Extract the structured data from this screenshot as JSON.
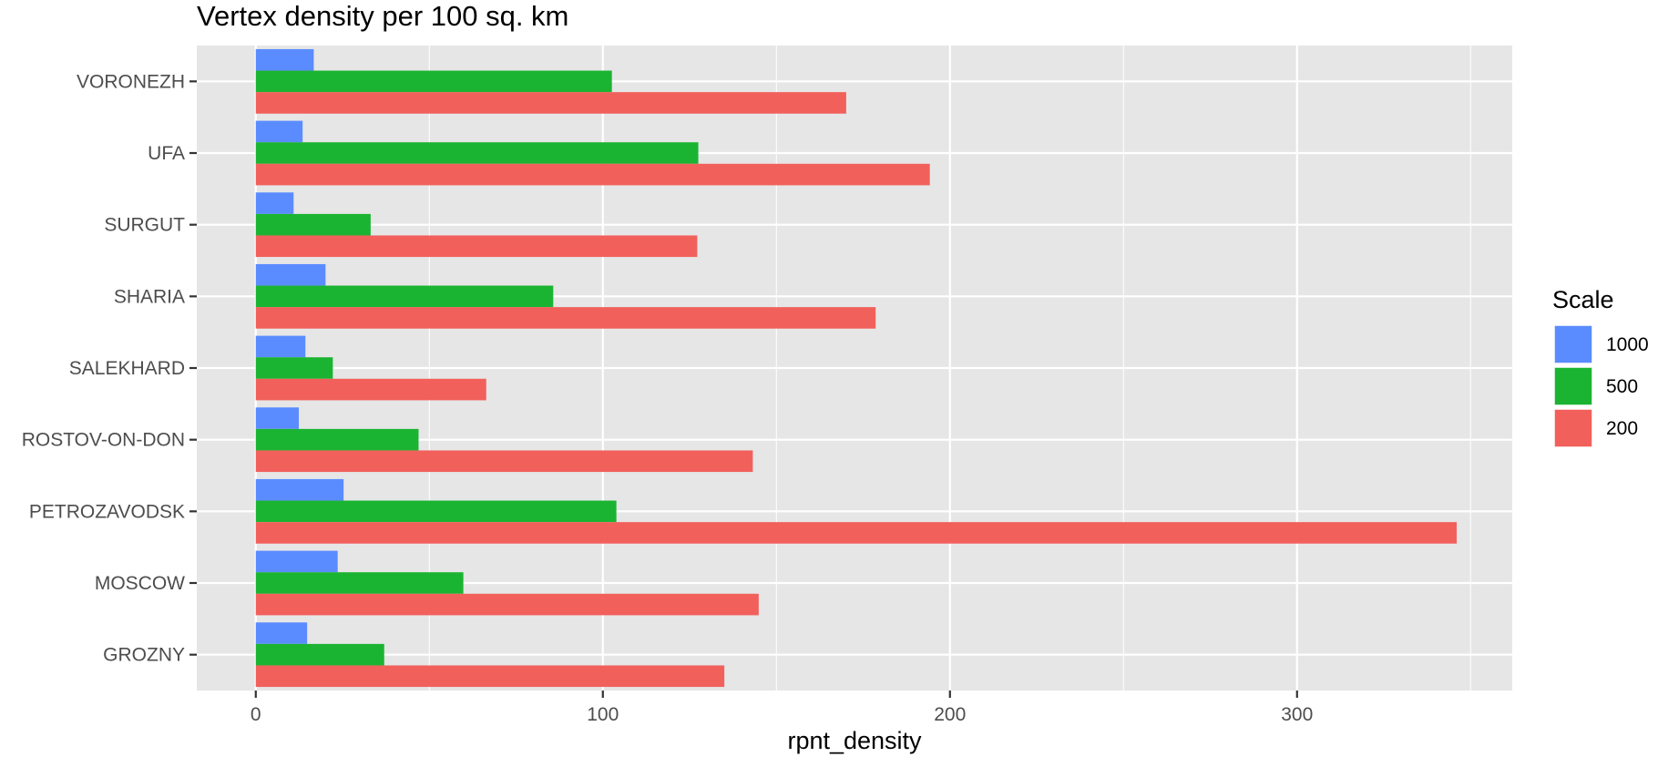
{
  "chart_data": {
    "type": "bar",
    "orientation": "horizontal",
    "title": "Vertex density per 100 sq. km",
    "xlabel": "rpnt_density",
    "ylabel": "",
    "xlim": [
      -17,
      362
    ],
    "xticks": [
      0,
      100,
      200,
      300
    ],
    "categories": [
      "VORONEZH",
      "UFA",
      "SURGUT",
      "SHARIA",
      "SALEKHARD",
      "ROSTOV-ON-DON",
      "PETROZAVODSK",
      "MOSCOW",
      "GROZNY"
    ],
    "series": [
      {
        "name": "1000",
        "color": "#5b8cff",
        "values": [
          16.7,
          13.5,
          10.9,
          20.1,
          14.3,
          12.4,
          25.3,
          23.6,
          14.8
        ]
      },
      {
        "name": "500",
        "color": "#1bb432",
        "values": [
          102.6,
          127.5,
          33.1,
          85.7,
          22.2,
          46.9,
          103.9,
          59.8,
          37.0
        ]
      },
      {
        "name": "200",
        "color": "#f2605c",
        "values": [
          170.1,
          194.2,
          127.2,
          178.6,
          66.4,
          143.2,
          346.0,
          144.9,
          135.0
        ]
      }
    ],
    "legend": {
      "title": "Scale",
      "position": "right"
    },
    "grid": true,
    "colors": {
      "panel": "#e6e6e6",
      "grid": "#ffffff"
    }
  }
}
